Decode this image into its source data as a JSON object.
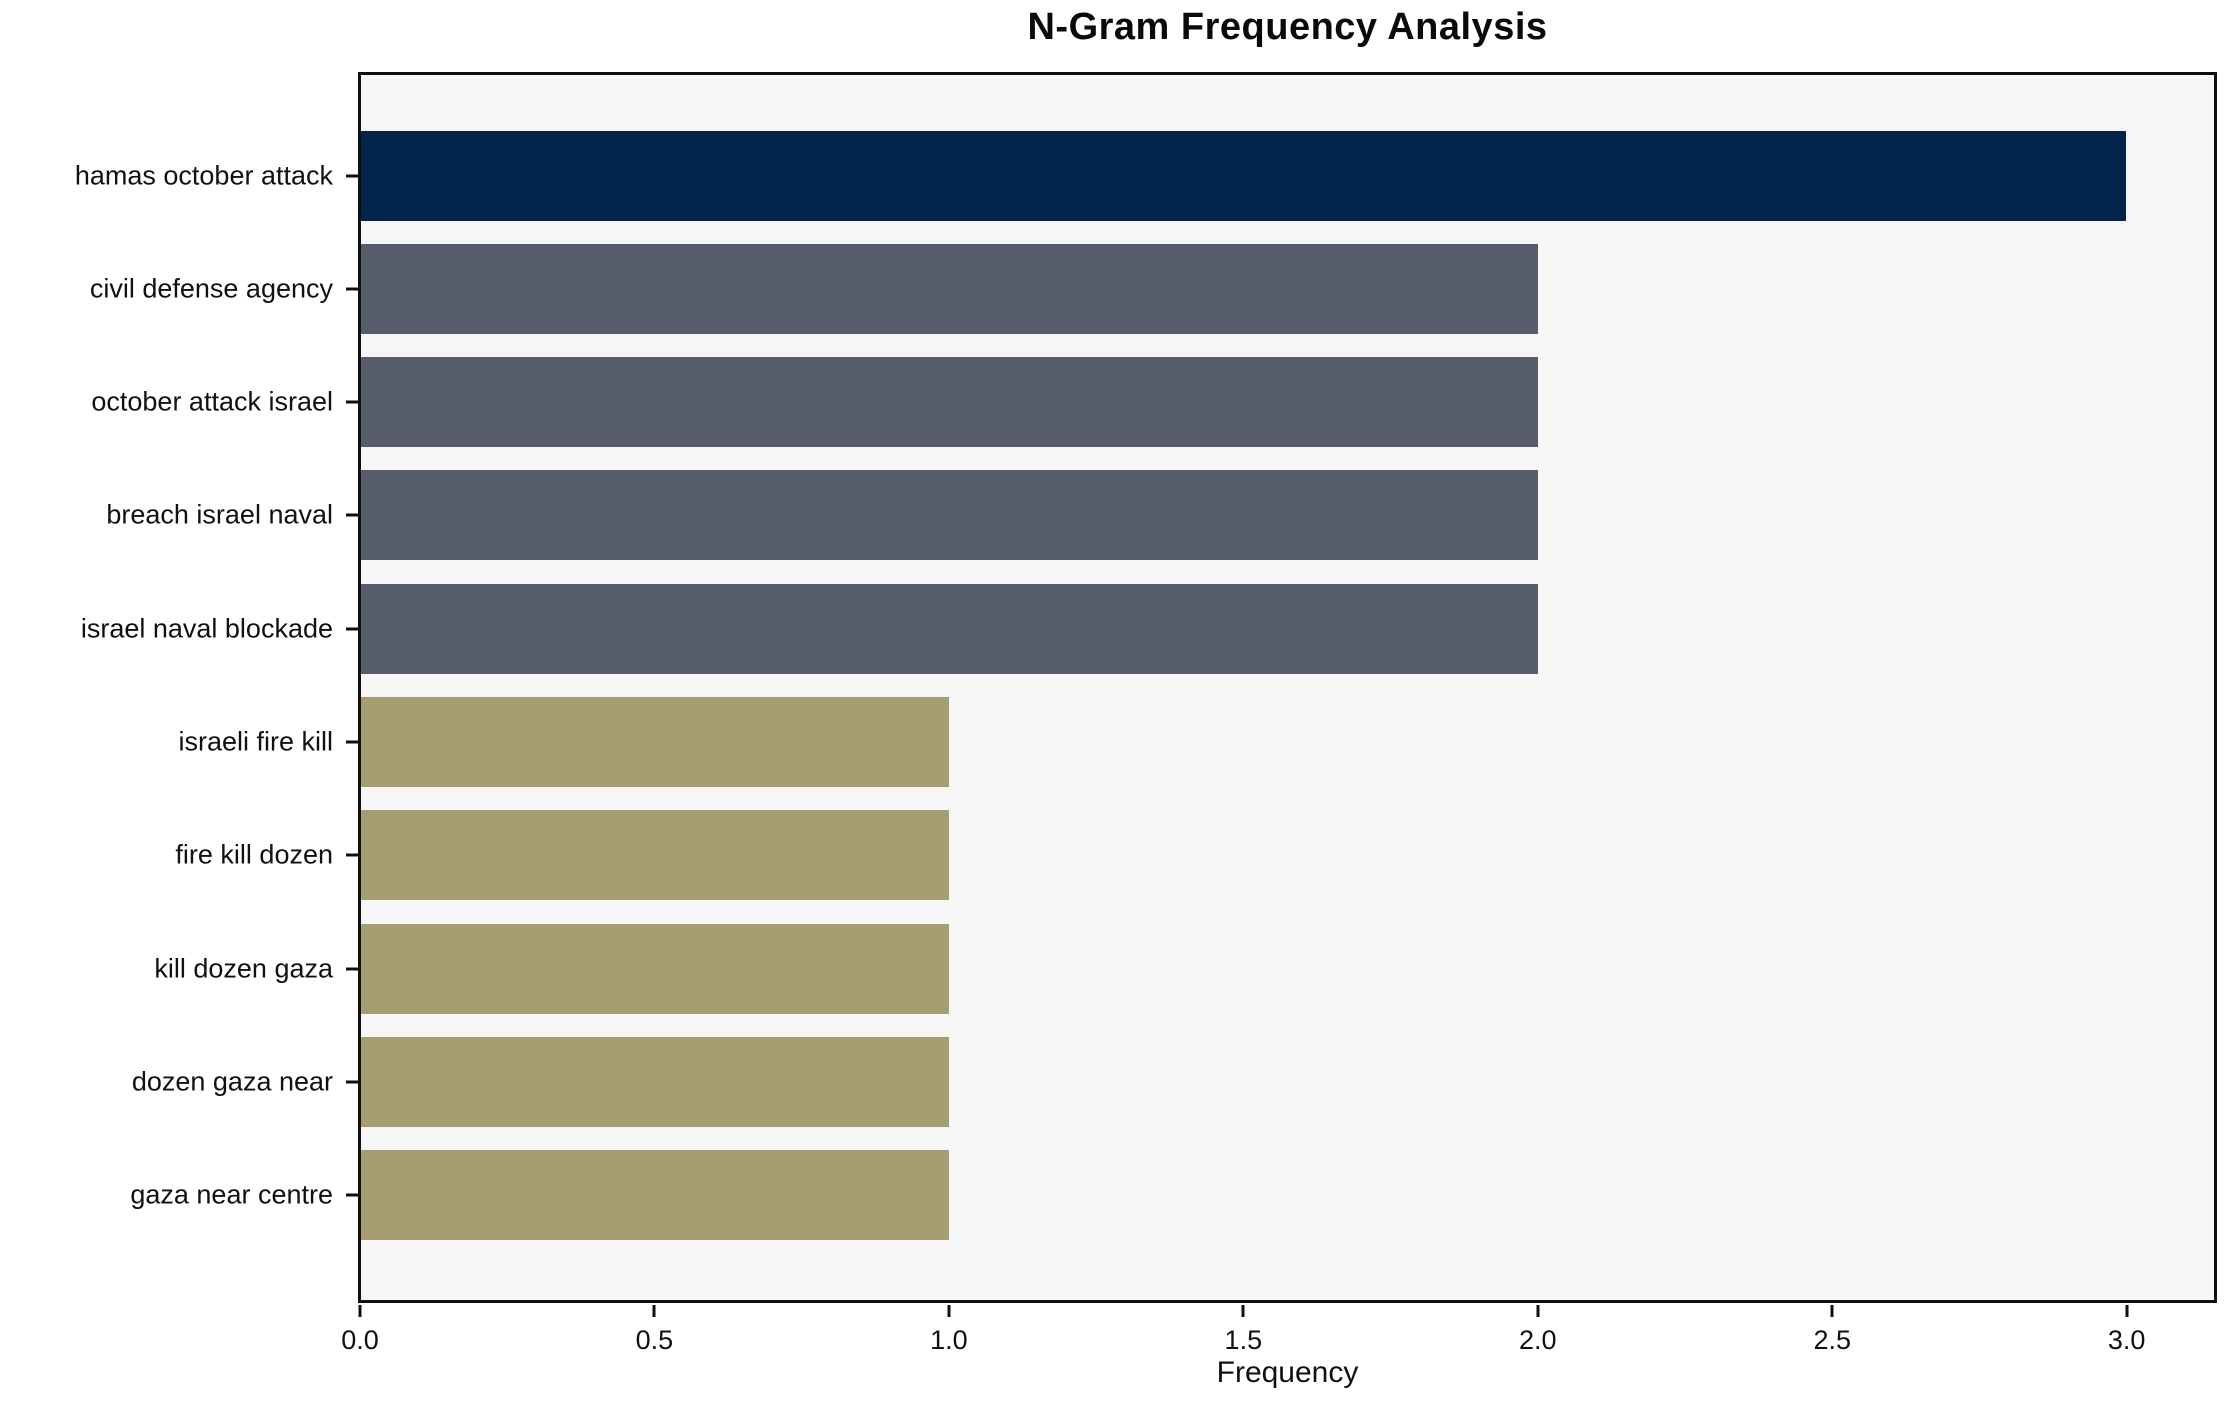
{
  "chart_data": {
    "type": "bar",
    "orientation": "horizontal",
    "title": "N-Gram Frequency Analysis",
    "xlabel": "Frequency",
    "ylabel": "",
    "categories": [
      "hamas october attack",
      "civil defense agency",
      "october attack israel",
      "breach israel naval",
      "israel naval blockade",
      "israeli fire kill",
      "fire kill dozen",
      "kill dozen gaza",
      "dozen gaza near",
      "gaza near centre"
    ],
    "values": [
      3,
      2,
      2,
      2,
      2,
      1,
      1,
      1,
      1,
      1
    ],
    "bar_colors": [
      "#02234a",
      "#565c6b",
      "#565c6b",
      "#565c6b",
      "#565c6b",
      "#a69d72",
      "#a69d72",
      "#a69d72",
      "#a69d72",
      "#a69d72"
    ],
    "xlim": [
      0,
      3.15
    ],
    "xticks": [
      {
        "value": 0.0,
        "label": "0.0"
      },
      {
        "value": 0.5,
        "label": "0.5"
      },
      {
        "value": 1.0,
        "label": "1.0"
      },
      {
        "value": 1.5,
        "label": "1.5"
      },
      {
        "value": 2.0,
        "label": "2.0"
      },
      {
        "value": 2.5,
        "label": "2.5"
      },
      {
        "value": 3.0,
        "label": "3.0"
      }
    ],
    "grid": false,
    "legend": "none",
    "colors": {
      "plot_bg": "#f6f6f7",
      "figure_bg": "#ffffff",
      "spine": "#0f0f0f",
      "highlight_bar": "#02234a",
      "mid_bar": "#565c6b",
      "low_bar": "#a69d72"
    }
  }
}
